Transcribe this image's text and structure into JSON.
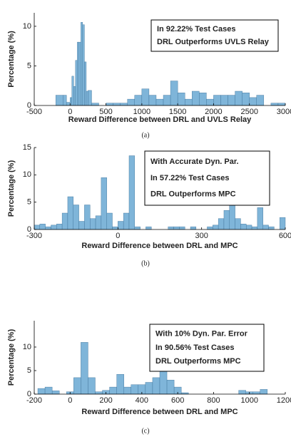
{
  "chart_data": [
    {
      "type": "histogram",
      "xlabel": "Reward Difference between DRL and UVLS Relay",
      "ylabel": "Percentage (%)",
      "annotation": [
        "In 92.22% Test Cases",
        "DRL Outperforms UVLS Relay"
      ],
      "caption": "(a)",
      "color": "#7fb5d9",
      "edgecolor": "#3b6f96",
      "bins": [
        -200,
        -100,
        -50,
        0,
        25,
        50,
        75,
        100,
        125,
        150,
        175,
        200,
        225,
        250,
        300,
        400,
        500,
        600,
        700,
        800,
        900,
        1000,
        1100,
        1200,
        1300,
        1400,
        1500,
        1600,
        1700,
        1800,
        1900,
        2000,
        2100,
        2200,
        2300,
        2400,
        2500,
        2600,
        2700,
        2800,
        2900,
        3000
      ],
      "values": [
        1.3,
        1.3,
        0.4,
        1.0,
        3.7,
        2.4,
        5.7,
        8.0,
        8.0,
        10.5,
        10.2,
        5.5,
        1.8,
        1.9,
        0.3,
        0,
        0.3,
        0.3,
        0.3,
        0.8,
        1.3,
        2.1,
        1.3,
        0.8,
        1.3,
        3.1,
        1.6,
        0.8,
        1.8,
        1.6,
        0.8,
        1.3,
        1.3,
        1.3,
        1.8,
        1.6,
        1.0,
        1.3,
        0,
        0.3,
        0.3
      ],
      "xlim": [
        -500,
        3000
      ],
      "xticks": [
        -500,
        0,
        500,
        1000,
        1500,
        2000,
        2500,
        3000
      ],
      "ylim": [
        0,
        11.7
      ],
      "yticks": [
        0,
        5,
        10
      ]
    },
    {
      "type": "histogram",
      "xlabel": "Reward Difference between DRL and MPC",
      "ylabel": "Percentage (%)",
      "annotation": [
        "With Accurate Dyn. Par.",
        "In 57.22% Test Cases",
        "DRL Outperforms MPC"
      ],
      "caption": "(b)",
      "color": "#7fb5d9",
      "edgecolor": "#3b6f96",
      "bins": [
        -300,
        -280,
        -260,
        -240,
        -220,
        -200,
        -180,
        -160,
        -140,
        -120,
        -100,
        -80,
        -60,
        -40,
        -20,
        0,
        20,
        40,
        60,
        80,
        100,
        120,
        140,
        160,
        180,
        200,
        220,
        240,
        260,
        280,
        300,
        320,
        340,
        360,
        380,
        400,
        420,
        440,
        460,
        480,
        500,
        520,
        540,
        560,
        580,
        600
      ],
      "values": [
        0.8,
        1.0,
        0.5,
        0.8,
        1.0,
        3.0,
        6.0,
        4.5,
        1.5,
        4.5,
        2.0,
        2.5,
        9.5,
        3.0,
        0.5,
        1.5,
        3.0,
        13.5,
        0.5,
        0,
        0.5,
        0,
        0,
        0,
        0.5,
        0.5,
        0.5,
        0,
        0.5,
        0,
        0,
        0.5,
        0.8,
        2.0,
        3.5,
        5.0,
        2.0,
        1.0,
        0.8,
        0.5,
        4.0,
        0.8,
        0.5,
        0,
        2.2
      ],
      "xlim": [
        -300,
        600
      ],
      "xticks": [
        -300,
        0,
        300,
        600
      ],
      "ylim": [
        0,
        15
      ],
      "yticks": [
        0,
        5,
        10,
        15
      ]
    },
    {
      "type": "histogram",
      "xlabel": "Reward Difference between DRL and MPC",
      "ylabel": "Percentage (%)",
      "annotation": [
        "With 10% Dyn. Par. Error",
        "In 90.56% Test Cases",
        "DRL Outperforms MPC"
      ],
      "caption": "(c)",
      "color": "#7fb5d9",
      "edgecolor": "#3b6f96",
      "bins": [
        -180,
        -140,
        -100,
        -60,
        -20,
        20,
        60,
        100,
        140,
        180,
        220,
        260,
        300,
        340,
        380,
        420,
        460,
        500,
        540,
        580,
        620,
        660,
        700,
        740,
        780,
        820,
        860,
        900,
        940,
        980,
        1020,
        1060,
        1100
      ],
      "values": [
        1.2,
        1.5,
        0.7,
        0,
        0.5,
        3.5,
        11.0,
        3.5,
        0.5,
        0.8,
        1.5,
        4.2,
        1.5,
        2.0,
        2.0,
        2.5,
        3.5,
        5.5,
        3.0,
        1.5,
        0.3,
        0,
        0,
        0,
        0,
        0,
        0,
        0,
        0.8,
        0.5,
        0.5,
        1.0
      ],
      "xlim": [
        -200,
        1200
      ],
      "xticks": [
        -200,
        0,
        200,
        400,
        600,
        800,
        1000,
        1200
      ],
      "ylim": [
        0,
        15.6
      ],
      "yticks": [
        0,
        5,
        10
      ]
    }
  ]
}
